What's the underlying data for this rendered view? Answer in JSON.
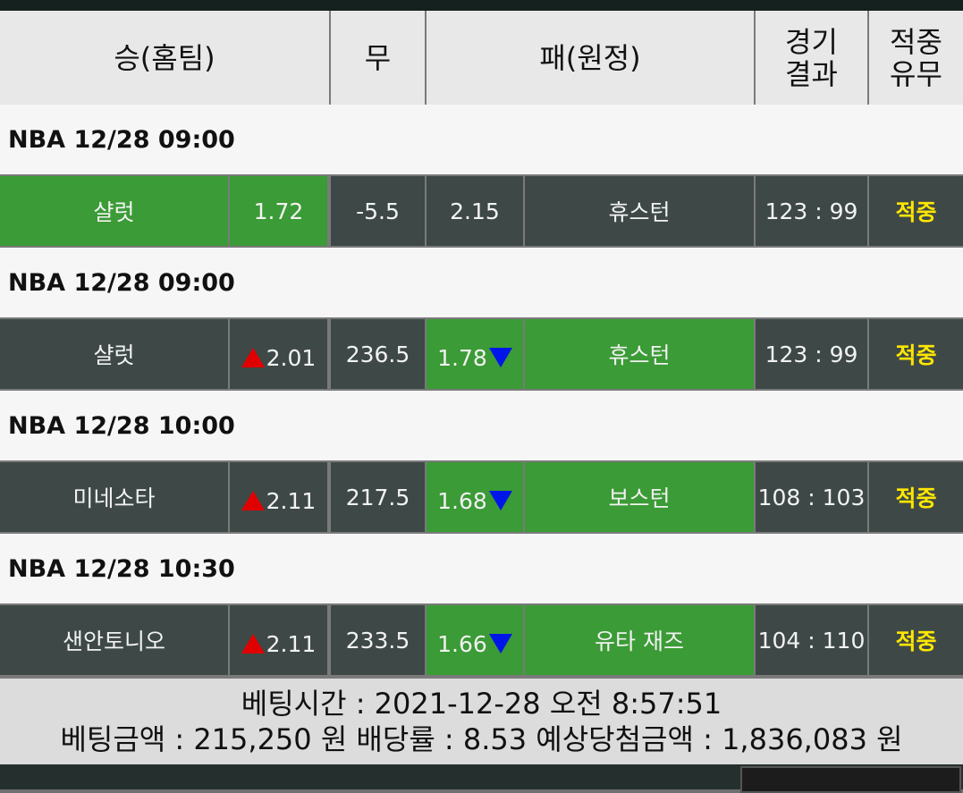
{
  "header": {
    "columns": [
      "승(홈팀)",
      "무",
      "패(원정)",
      "경기\n결과",
      "적중\n유무"
    ]
  },
  "games": [
    {
      "league_time": "NBA 12/28 09:00",
      "home": "샬럿",
      "home_odds": "1.72",
      "middle": "-5.5",
      "away_odds": "2.15",
      "away": "휴스턴",
      "score": "123 : 99",
      "result": "적중",
      "pick": "home",
      "home_trend": "none",
      "away_trend": "none"
    },
    {
      "league_time": "NBA 12/28 09:00",
      "home": "샬럿",
      "home_odds": "2.01",
      "middle": "236.5",
      "away_odds": "1.78",
      "away": "휴스턴",
      "score": "123 : 99",
      "result": "적중",
      "pick": "away",
      "home_trend": "up",
      "away_trend": "down"
    },
    {
      "league_time": "NBA 12/28 10:00",
      "home": "미네소타",
      "home_odds": "2.11",
      "middle": "217.5",
      "away_odds": "1.68",
      "away": "보스턴",
      "score": "108 : 103",
      "result": "적중",
      "pick": "away",
      "home_trend": "up",
      "away_trend": "down"
    },
    {
      "league_time": "NBA 12/28 10:30",
      "home": "샌안토니오",
      "home_odds": "2.11",
      "middle": "233.5",
      "away_odds": "1.66",
      "away": "유타 재즈",
      "score": "104 : 110",
      "result": "적중",
      "pick": "away",
      "home_trend": "up",
      "away_trend": "down"
    }
  ],
  "footer": {
    "bet_time": "베팅시간 : 2021-12-28 오전 8:57:51",
    "bet_summary": "베팅금액 : 215,250 원 배당률 : 8.53 예상당첨금액 : 1,836,083 원"
  }
}
